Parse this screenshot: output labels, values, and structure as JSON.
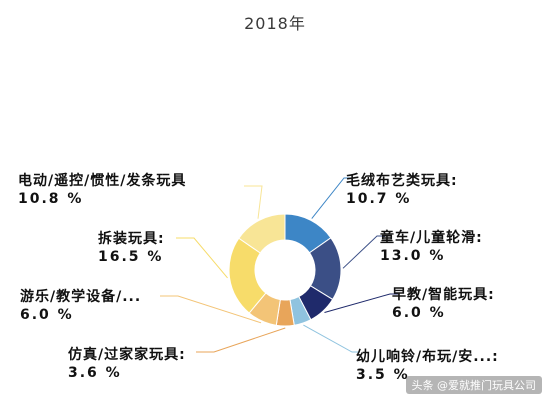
{
  "chart_data": {
    "type": "pie",
    "title": "2018年",
    "variant": "donut",
    "labeled_slices": [
      {
        "name": "毛绒布艺类玩具:",
        "display": "10.7 %",
        "value": 10.7,
        "color": "#3d86c6"
      },
      {
        "name": "童车/儿童轮滑:",
        "display": "13.0 %",
        "value": 13.0,
        "color": "#3b4f86"
      },
      {
        "name": "早教/智能玩具:",
        "display": "6.0 %",
        "value": 6.0,
        "color": "#1f2a6b"
      },
      {
        "name": "幼儿响铃/布玩/安...:",
        "display": "3.5 %",
        "value": 3.5,
        "color": "#8fc3df"
      },
      {
        "name": "仿真/过家家玩具:",
        "display": "3.6 %",
        "value": 3.6,
        "color": "#e8a55a"
      },
      {
        "name": "游乐/教学设备/...",
        "display": "6.0 %",
        "value": 6.0,
        "color": "#f3c477"
      },
      {
        "name": "拆装玩具:",
        "display": "16.5 %",
        "value": 16.5,
        "color": "#f7dc6a"
      },
      {
        "name": "电动/遥控/惯性/发条玩具",
        "display": "10.8 %",
        "value": 10.8,
        "color": "#f8e596"
      }
    ]
  },
  "watermark": {
    "text": "头条 @爱就推门玩具公司"
  }
}
